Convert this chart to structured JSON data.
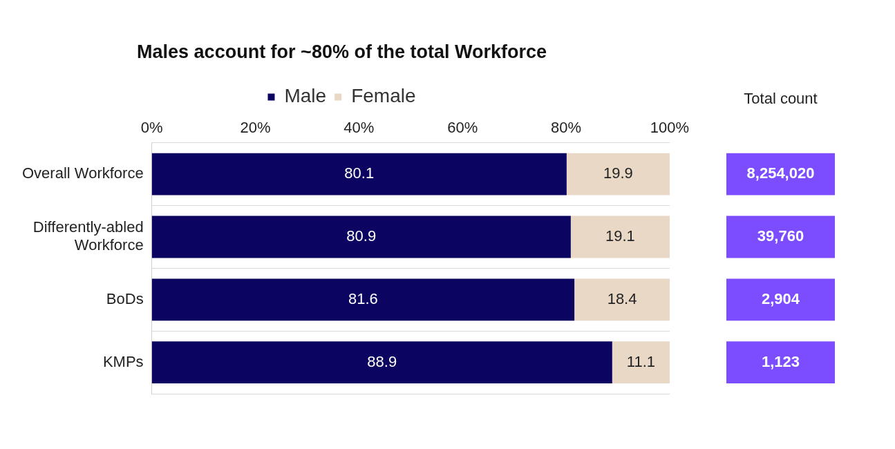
{
  "chart_data": {
    "type": "bar",
    "orientation": "horizontal",
    "stacked": true,
    "title": "Males account for ~80% of the total Workforce",
    "categories": [
      "Overall Workforce",
      "Differently-abled Workforce",
      "BoDs",
      "KMPs"
    ],
    "series": [
      {
        "name": "Male",
        "color": "#0b0461",
        "values": [
          80.1,
          80.9,
          81.6,
          88.9
        ]
      },
      {
        "name": "Female",
        "color": "#e8d8c5",
        "values": [
          19.9,
          19.1,
          18.4,
          11.1
        ]
      }
    ],
    "xlim": [
      0,
      100
    ],
    "xticks": [
      {
        "value": 0,
        "label": "0%"
      },
      {
        "value": 20,
        "label": "20%"
      },
      {
        "value": 40,
        "label": "40%"
      },
      {
        "value": 60,
        "label": "60%"
      },
      {
        "value": 80,
        "label": "80%"
      },
      {
        "value": 100,
        "label": "100%"
      }
    ],
    "data_labels": true,
    "annotations": [
      "Total count",
      "8,254,020",
      "39,760",
      "2,904",
      "1,123"
    ],
    "legend": "top",
    "grid": "y"
  }
}
